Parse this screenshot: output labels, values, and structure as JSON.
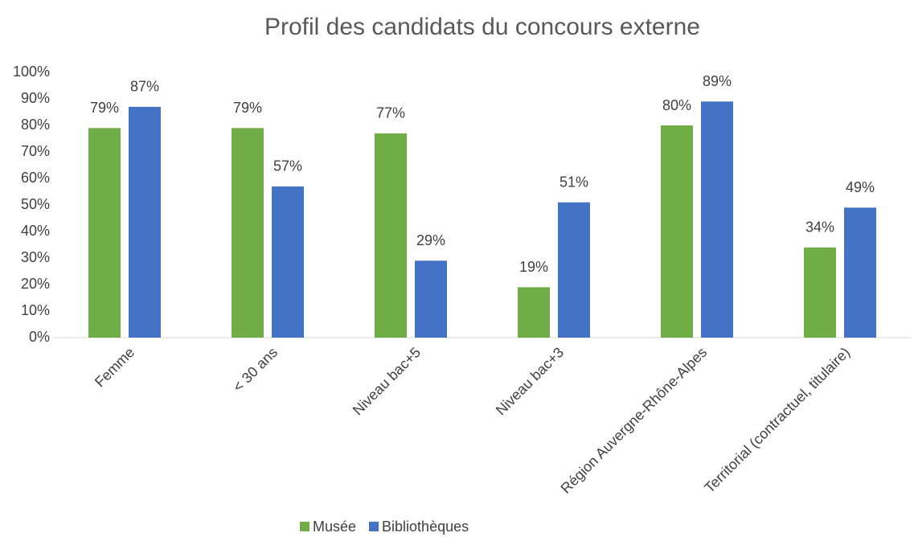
{
  "chart_data": {
    "type": "bar",
    "title": "Profil des candidats du concours externe",
    "categories": [
      "Femme",
      "< 30 ans",
      "Niveau bac+5",
      "Niveau bac+3",
      "Région Auvergne-Rhône-Alpes",
      "Territorial (contractuel, titulaire)"
    ],
    "series": [
      {
        "name": "Musée",
        "color": "#70ad47",
        "values": [
          79,
          79,
          77,
          19,
          80,
          34
        ],
        "value_labels": [
          "79%",
          "79%",
          "77%",
          "19%",
          "80%",
          "34%"
        ]
      },
      {
        "name": "Bibliothèques",
        "color": "#4472c4",
        "values": [
          87,
          57,
          29,
          51,
          89,
          49
        ],
        "value_labels": [
          "87%",
          "57%",
          "29%",
          "51%",
          "89%",
          "49%"
        ]
      }
    ],
    "ylim": [
      0,
      100
    ],
    "yticks": [
      {
        "value": 0,
        "label": "0%"
      },
      {
        "value": 10,
        "label": "10%"
      },
      {
        "value": 20,
        "label": "20%"
      },
      {
        "value": 30,
        "label": "30%"
      },
      {
        "value": 40,
        "label": "40%"
      },
      {
        "value": 50,
        "label": "50%"
      },
      {
        "value": 60,
        "label": "60%"
      },
      {
        "value": 70,
        "label": "70%"
      },
      {
        "value": 80,
        "label": "80%"
      },
      {
        "value": 90,
        "label": "90%"
      },
      {
        "value": 100,
        "label": "100%"
      }
    ],
    "grid": false,
    "legend": "bottom"
  }
}
